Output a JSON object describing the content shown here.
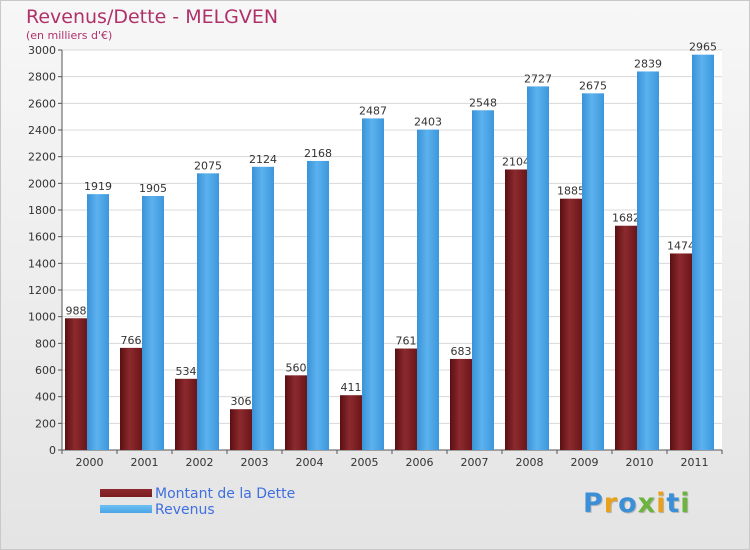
{
  "title": "Revenus/Dette - MELGVEN",
  "subtitle": "(en milliers d'€)",
  "logo": {
    "letters": [
      "P",
      "r",
      "o",
      "x",
      "i",
      "t",
      "i"
    ],
    "colors": [
      "#3a8fd6",
      "#e8a21a",
      "#3a8fd6",
      "#6cb33f",
      "#e8a21a",
      "#3a8fd6",
      "#6cb33f"
    ]
  },
  "chart_data": {
    "type": "bar",
    "categories": [
      "2000",
      "2001",
      "2002",
      "2003",
      "2004",
      "2005",
      "2006",
      "2007",
      "2008",
      "2009",
      "2010",
      "2011"
    ],
    "series": [
      {
        "name": "Montant de la Dette",
        "color": "#7a1e22",
        "values": [
          988,
          766,
          534,
          306,
          560,
          411,
          761,
          683,
          2104,
          1885,
          1682,
          1474
        ]
      },
      {
        "name": "Revenus",
        "color": "#4aa4e6",
        "values": [
          1919,
          1905,
          2075,
          2124,
          2168,
          2487,
          2403,
          2548,
          2727,
          2675,
          2839,
          2965
        ]
      }
    ],
    "ylim": [
      0,
      3000
    ],
    "yticks": [
      0,
      200,
      400,
      600,
      800,
      1000,
      1200,
      1400,
      1600,
      1800,
      2000,
      2200,
      2400,
      2600,
      2800,
      3000
    ],
    "grid": true,
    "legend_position": "bottom-left"
  }
}
